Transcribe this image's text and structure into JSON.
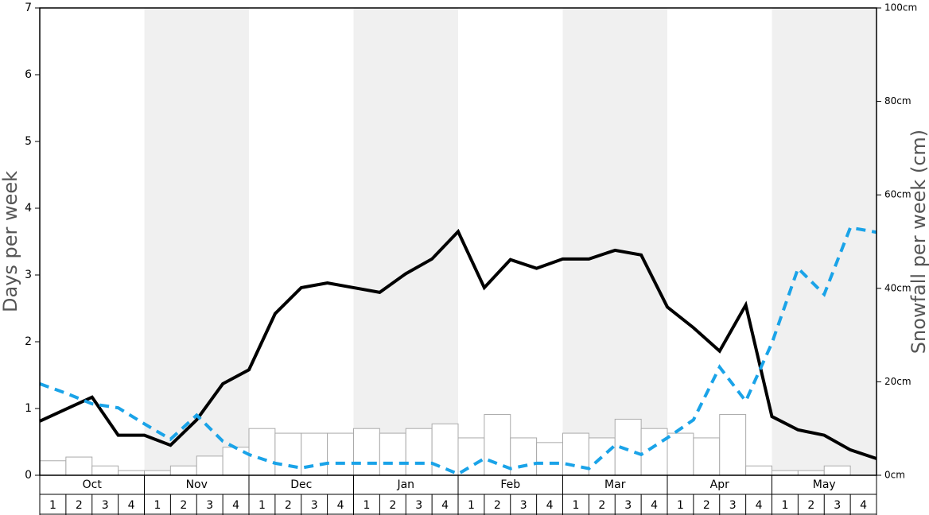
{
  "chart_data": {
    "type": "bar",
    "y_label": "Days per week",
    "y2_label": "Snowfall per week (cm)",
    "months": [
      "Oct",
      "Nov",
      "Dec",
      "Jan",
      "Feb",
      "Mar",
      "Apr",
      "May"
    ],
    "categories": [
      "1",
      "2",
      "3",
      "4",
      "1",
      "2",
      "3",
      "4",
      "1",
      "2",
      "3",
      "4",
      "1",
      "2",
      "3",
      "4",
      "1",
      "2",
      "3",
      "4",
      "1",
      "2",
      "3",
      "4",
      "1",
      "2",
      "3",
      "4",
      "1",
      "2",
      "3",
      "4"
    ],
    "values": [
      3.1,
      3.9,
      2,
      1,
      1,
      2,
      4.1,
      6,
      10,
      9,
      9,
      9,
      10,
      9,
      10,
      11,
      8,
      13,
      8,
      7,
      9,
      8,
      12,
      10,
      9,
      8,
      13,
      2,
      1,
      1,
      2,
      0
    ],
    "axis": "y2",
    "color": "#ffffff",
    "x": [
      0,
      1,
      2,
      3,
      4,
      5,
      6,
      7,
      8,
      9,
      10,
      11,
      12,
      13,
      14,
      15,
      16,
      17,
      18,
      19,
      20,
      21,
      22,
      23,
      24,
      25,
      26,
      27,
      28,
      29,
      30,
      31,
      32
    ],
    "xlim": [
      0,
      32
    ],
    "series": [
      {
        "color": "#000000",
        "dashed": false,
        "values": [
          0.81,
          0.99,
          1.17,
          0.6,
          0.6,
          0.45,
          0.83,
          1.37,
          1.58,
          2.42,
          2.81,
          2.88,
          2.81,
          2.74,
          3.02,
          3.24,
          3.65,
          2.81,
          3.23,
          3.1,
          3.24,
          3.24,
          3.37,
          3.3,
          2.52,
          2.21,
          1.86,
          2.55,
          0.88,
          0.68,
          0.6,
          0.38,
          0.25
        ]
      },
      {
        "color": "#1aa3e8",
        "dashed": true,
        "values": [
          1.37,
          1.23,
          1.07,
          1.01,
          0.77,
          0.54,
          0.9,
          0.51,
          0.31,
          0.18,
          0.11,
          0.18,
          0.18,
          0.18,
          0.18,
          0.18,
          0.02,
          0.25,
          0.1,
          0.18,
          0.18,
          0.1,
          0.45,
          0.31,
          0.56,
          0.83,
          1.62,
          1.11,
          1.98,
          3.1,
          2.71,
          3.71,
          3.64
        ]
      }
    ],
    "ylim": [
      0,
      7
    ],
    "yticks": [
      0,
      1,
      2,
      3,
      4,
      5,
      6,
      7
    ],
    "y2lim": [
      0,
      100
    ],
    "y2ticks": [
      {
        "value": 0,
        "label": "0cm"
      },
      {
        "value": 20,
        "label": "20cm"
      },
      {
        "value": 40,
        "label": "40cm"
      },
      {
        "value": 60,
        "label": "60cm"
      },
      {
        "value": 80,
        "label": "80cm"
      },
      {
        "value": 100,
        "label": "100cm"
      }
    ]
  }
}
